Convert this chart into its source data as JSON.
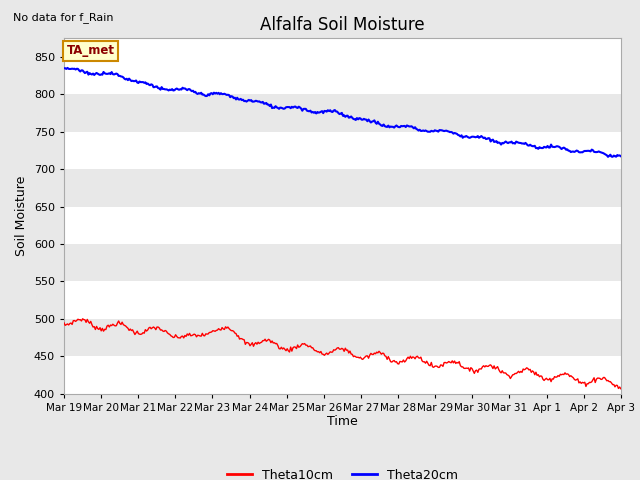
{
  "title": "Alfalfa Soil Moisture",
  "subtitle": "No data for f_Rain",
  "xlabel": "Time",
  "ylabel": "Soil Moisture",
  "ylim": [
    400,
    875
  ],
  "yticks": [
    400,
    450,
    500,
    550,
    600,
    650,
    700,
    750,
    800,
    850
  ],
  "fig_bg_color": "#e8e8e8",
  "plot_bg_color": "#ffffff",
  "band_color": "#e8e8e8",
  "legend_label1": "Theta10cm",
  "legend_label2": "Theta20cm",
  "line1_color": "#ff0000",
  "line2_color": "#0000ff",
  "xtick_labels": [
    "Mar 19",
    "Mar 20",
    "Mar 21",
    "Mar 22",
    "Mar 23",
    "Mar 24",
    "Mar 25",
    "Mar 26",
    "Mar 27",
    "Mar 28",
    "Mar 29",
    "Mar 30",
    "Mar 31",
    "Apr 1",
    "Apr 2",
    "Apr 3"
  ],
  "ta_met_label": "TA_met",
  "ta_met_bg": "#ffffcc",
  "ta_met_border": "#cc8800",
  "title_fontsize": 12,
  "axis_fontsize": 9,
  "tick_fontsize": 8
}
